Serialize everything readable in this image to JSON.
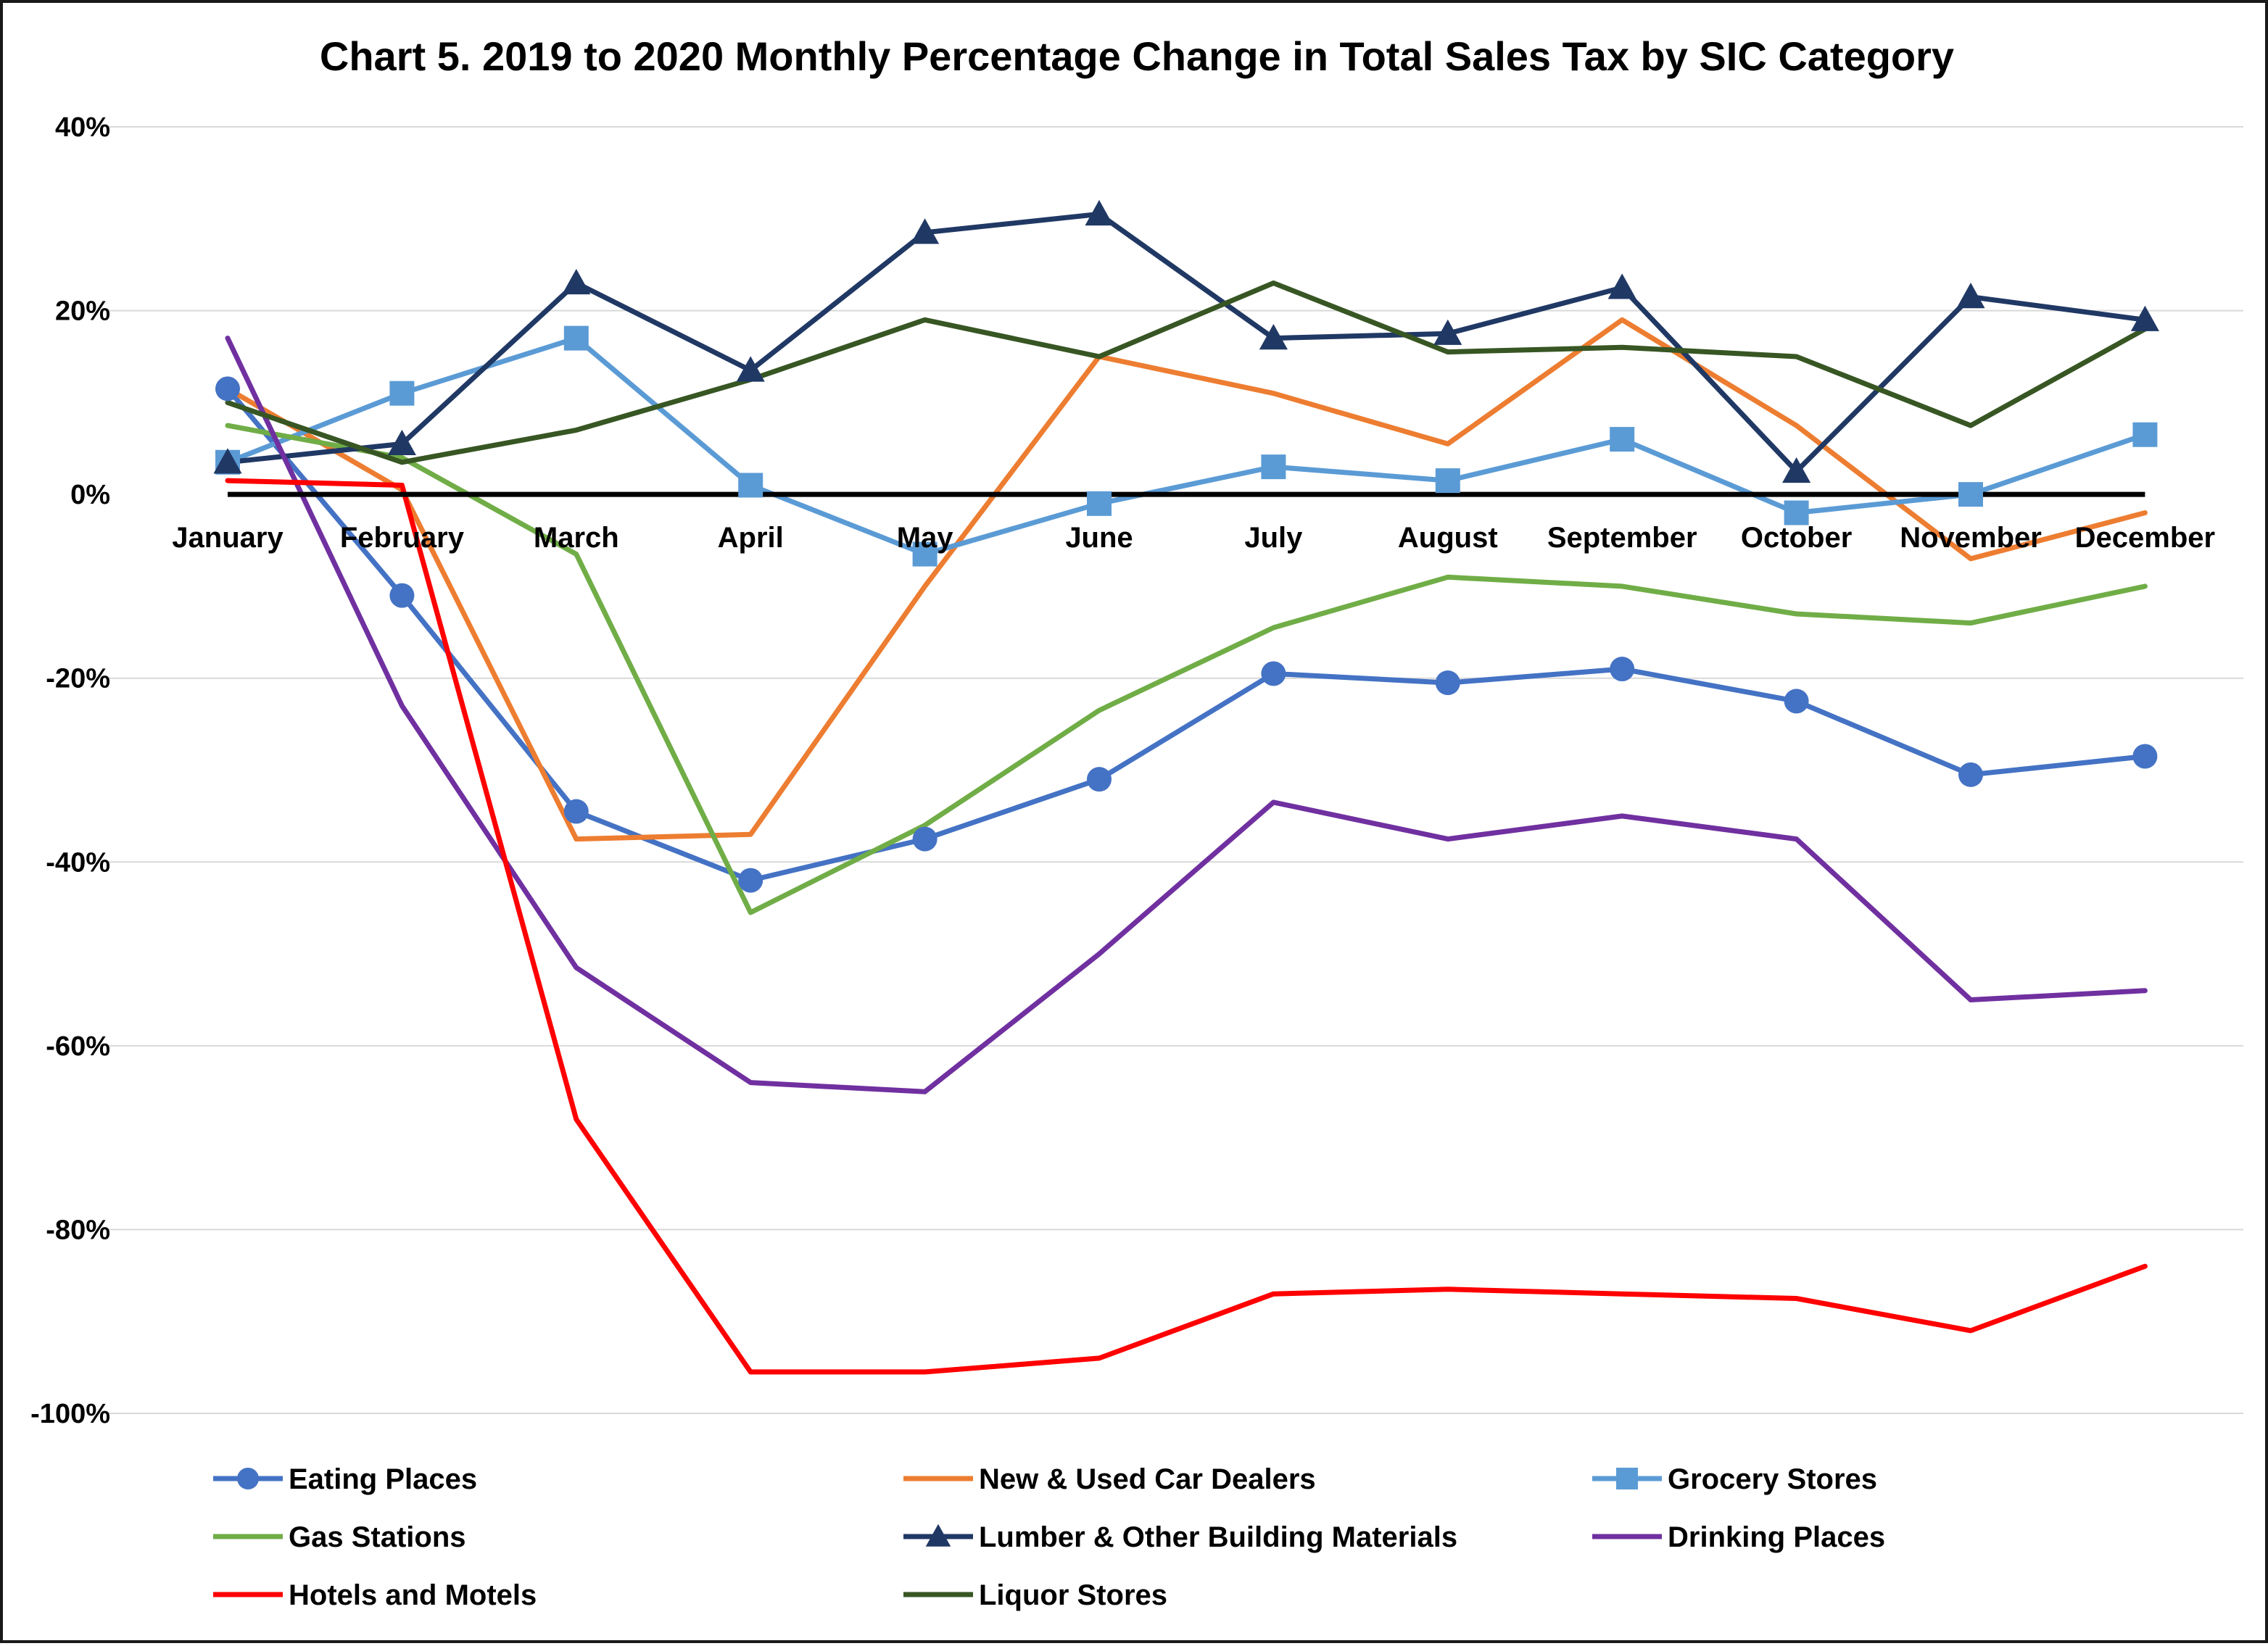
{
  "chart_data": {
    "type": "line",
    "title": "Chart 5. 2019 to 2020 Monthly Percentage Change in Total Sales Tax by SIC Category",
    "xlabel": "",
    "ylabel": "",
    "ylim": [
      -100,
      40
    ],
    "y_ticks": [
      40,
      20,
      0,
      -20,
      -40,
      -60,
      -80,
      -100
    ],
    "y_tick_labels": [
      "40%",
      "20%",
      "0%",
      "-20%",
      "-40%",
      "-60%",
      "-80%",
      "-100%"
    ],
    "grid": true,
    "legend_position": "bottom",
    "categories": [
      "January",
      "February",
      "March",
      "April",
      "May",
      "June",
      "July",
      "August",
      "September",
      "October",
      "November",
      "December"
    ],
    "series": [
      {
        "name": "Eating Places",
        "color": "#4472C4",
        "marker": "circle",
        "values": [
          11.5,
          -11,
          -34.5,
          -42,
          -37.5,
          -31,
          -19.5,
          -20.5,
          -19,
          -22.5,
          -30.5,
          -28.5
        ]
      },
      {
        "name": "New & Used Car Dealers",
        "color": "#ED7D31",
        "marker": "none",
        "values": [
          11.5,
          0.5,
          -37.5,
          -37,
          -10,
          15,
          11,
          5.5,
          19,
          7.5,
          -7,
          -2
        ]
      },
      {
        "name": "Grocery Stores",
        "color": "#5B9BD5",
        "marker": "square",
        "values": [
          3.5,
          11,
          17,
          1,
          -6.5,
          -1,
          3,
          1.5,
          6,
          -2,
          0,
          6.5
        ]
      },
      {
        "name": "Gas Stations",
        "color": "#70AD47",
        "marker": "none",
        "values": [
          7.5,
          4,
          -6.5,
          -45.5,
          -36,
          -23.5,
          -14.5,
          -9,
          -10,
          -13,
          -14,
          -10
        ]
      },
      {
        "name": "Lumber & Other Building Materials",
        "color": "#203864",
        "marker": "triangle",
        "values": [
          3.5,
          5.5,
          23,
          13.5,
          28.5,
          30.5,
          17,
          17.5,
          22.5,
          2.5,
          21.5,
          19
        ]
      },
      {
        "name": "Drinking Places",
        "color": "#7030A0",
        "marker": "none",
        "values": [
          17,
          -23,
          -51.5,
          -64,
          -65,
          -50,
          -33.5,
          -37.5,
          -35,
          -37.5,
          -55,
          -54
        ]
      },
      {
        "name": "Hotels and Motels",
        "color": "#FF0000",
        "marker": "none",
        "values": [
          1.5,
          1,
          -68,
          -95.5,
          -95.5,
          -94,
          -87,
          -86.5,
          -87,
          -87.5,
          -91,
          -84
        ]
      },
      {
        "name": "Liquor Stores",
        "color": "#375623",
        "marker": "none",
        "values": [
          10,
          3.5,
          7,
          12.5,
          19,
          15,
          23,
          15.5,
          16,
          15,
          7.5,
          18
        ]
      }
    ]
  }
}
